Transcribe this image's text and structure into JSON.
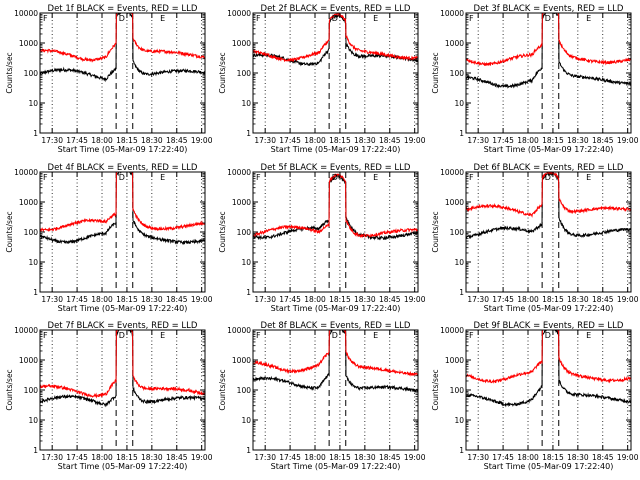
{
  "figure": {
    "ylabel": "Counts/sec",
    "xlabel": "Start Time",
    "y_ticks": [
      "1",
      "10",
      "100",
      "1000",
      "10000"
    ],
    "x_ticks": [
      "17:30",
      "17:45",
      "18:00",
      "18:15",
      "18:30",
      "18:45",
      "19:00"
    ],
    "marker_letters": [
      "F",
      "D",
      "E"
    ],
    "colors": {
      "events": "#000000",
      "lld": "#ff0000",
      "axes": "#000000"
    }
  },
  "chart_data": [
    {
      "type": "line",
      "title": "Det 1f BLACK = Events, RED = LLD",
      "xlabel": "Start Time (05-Mar-09 17:22:40)",
      "ylabel": "Counts/sec",
      "ylog": true,
      "ylim": [
        1,
        10000
      ],
      "series": [
        {
          "name": "Events",
          "color": "#000000",
          "base": 95,
          "mid": 12000,
          "tail": 95
        },
        {
          "name": "LLD",
          "color": "#ff0000",
          "base": 420,
          "mid": 15000,
          "tail": 420
        }
      ]
    },
    {
      "type": "line",
      "title": "Det 2f BLACK = Events, RED = LLD",
      "xlabel": "Start Time (05-Mar-09 17:22:40)",
      "ylabel": "Counts/sec",
      "ylog": true,
      "ylim": [
        1,
        10000
      ],
      "series": [
        {
          "name": "Events",
          "color": "#000000",
          "base": 300,
          "mid": 8000,
          "tail": 300
        },
        {
          "name": "LLD",
          "color": "#ff0000",
          "base": 420,
          "mid": 9000,
          "tail": 420
        }
      ]
    },
    {
      "type": "line",
      "title": "Det 3f BLACK = Events, RED = LLD",
      "xlabel": "Start Time (05-Mar-09 17:22:40)",
      "ylabel": "Counts/sec",
      "ylog": true,
      "ylim": [
        1,
        10000
      ],
      "series": [
        {
          "name": "Events",
          "color": "#000000",
          "base": 55,
          "mid": 12000,
          "tail": 60
        },
        {
          "name": "LLD",
          "color": "#ff0000",
          "base": 300,
          "mid": 15000,
          "tail": 300
        }
      ]
    },
    {
      "type": "line",
      "title": "Det 4f BLACK = Events, RED = LLD",
      "xlabel": "Start Time (05-Mar-09 17:22:40)",
      "ylabel": "Counts/sec",
      "ylog": true,
      "ylim": [
        1,
        10000
      ],
      "series": [
        {
          "name": "Events",
          "color": "#000000",
          "base": 70,
          "mid": 12000,
          "tail": 60
        },
        {
          "name": "LLD",
          "color": "#ff0000",
          "base": 180,
          "mid": 15000,
          "tail": 170
        }
      ]
    },
    {
      "type": "line",
      "title": "Det 5f BLACK = Events, RED = LLD",
      "xlabel": "Start Time (05-Mar-09 17:22:40)",
      "ylabel": "Counts/sec",
      "ylog": true,
      "ylim": [
        1,
        10000
      ],
      "series": [
        {
          "name": "Events",
          "color": "#000000",
          "base": 100,
          "mid": 7000,
          "tail": 85
        },
        {
          "name": "LLD",
          "color": "#ff0000",
          "base": 110,
          "mid": 8000,
          "tail": 95
        }
      ]
    },
    {
      "type": "line",
      "title": "Det 6f BLACK = Events, RED = LLD",
      "xlabel": "Start Time (05-Mar-09 17:22:40)",
      "ylabel": "Counts/sec",
      "ylog": true,
      "ylim": [
        1,
        10000
      ],
      "series": [
        {
          "name": "Events",
          "color": "#000000",
          "base": 100,
          "mid": 9000,
          "tail": 100
        },
        {
          "name": "LLD",
          "color": "#ff0000",
          "base": 550,
          "mid": 10000,
          "tail": 500
        }
      ]
    },
    {
      "type": "line",
      "title": "Det 7f BLACK = Events, RED = LLD",
      "xlabel": "Start Time (05-Mar-09 17:22:40)",
      "ylabel": "Counts/sec",
      "ylog": true,
      "ylim": [
        1,
        10000
      ],
      "series": [
        {
          "name": "Events",
          "color": "#000000",
          "base": 45,
          "mid": 12000,
          "tail": 45
        },
        {
          "name": "LLD",
          "color": "#ff0000",
          "base": 100,
          "mid": 15000,
          "tail": 90
        }
      ]
    },
    {
      "type": "line",
      "title": "Det 8f BLACK = Events, RED = LLD",
      "xlabel": "Start Time (05-Mar-09 17:22:40)",
      "ylabel": "Counts/sec",
      "ylog": true,
      "ylim": [
        1,
        10000
      ],
      "series": [
        {
          "name": "Events",
          "color": "#000000",
          "base": 180,
          "mid": 12000,
          "tail": 100
        },
        {
          "name": "LLD",
          "color": "#ff0000",
          "base": 650,
          "mid": 15000,
          "tail": 450
        }
      ]
    },
    {
      "type": "line",
      "title": "Det 9f BLACK = Events, RED = LLD",
      "xlabel": "Start Time (05-Mar-09 17:22:40)",
      "ylabel": "Counts/sec",
      "ylog": true,
      "ylim": [
        1,
        10000
      ],
      "series": [
        {
          "name": "Events",
          "color": "#000000",
          "base": 50,
          "mid": 12000,
          "tail": 55
        },
        {
          "name": "LLD",
          "color": "#ff0000",
          "base": 300,
          "mid": 15000,
          "tail": 280
        }
      ]
    }
  ]
}
